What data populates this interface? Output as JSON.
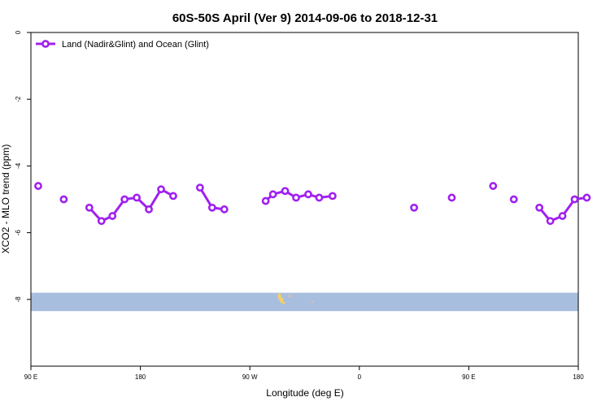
{
  "chart_data": {
    "type": "line",
    "title": "60S-50S April (Ver 9)   2014-09-06 to 2018-12-31",
    "xlabel": "Longitude (deg E)",
    "ylabel": "XCO2 - MLO trend (ppm)",
    "x_tick_labels": [
      "90 E",
      "180",
      "90 W",
      "0",
      "90 E",
      "180"
    ],
    "y_tick_labels": [
      "0",
      "-2",
      "-4",
      "-6",
      "-8"
    ],
    "ylim": [
      -10,
      0
    ],
    "legend_position": "top-left",
    "grid": false,
    "series": [
      {
        "name": "Land (Nadir&Glint) and Ocean (Glint)",
        "color": "#a020f0",
        "segments": [
          [
            [
              96,
              -4.6
            ]
          ],
          [
            [
              117,
              -5.0
            ]
          ],
          [
            [
              138,
              -5.25
            ],
            [
              148,
              -5.65
            ],
            [
              157,
              -5.5
            ],
            [
              167,
              -5.0
            ],
            [
              177,
              -4.95
            ],
            [
              187,
              -5.3
            ],
            [
              197,
              -4.7
            ],
            [
              207,
              -4.9
            ]
          ],
          [
            [
              229,
              -4.65
            ],
            [
              239,
              -5.25
            ],
            [
              249,
              -5.3
            ]
          ],
          [
            [
              283,
              -5.05
            ],
            [
              289,
              -4.85
            ],
            [
              299,
              -4.75
            ],
            [
              308,
              -4.95
            ],
            [
              318,
              -4.85
            ],
            [
              327,
              -4.95
            ],
            [
              338,
              -4.9
            ]
          ],
          [
            [
              405,
              -5.25
            ]
          ],
          [
            [
              436,
              -4.95
            ]
          ],
          [
            [
              470,
              -4.6
            ]
          ],
          [
            [
              487,
              -5.0
            ]
          ],
          [
            [
              508,
              -5.25
            ],
            [
              517,
              -5.65
            ],
            [
              527,
              -5.5
            ],
            [
              537,
              -5.0
            ],
            [
              547,
              -4.95
            ]
          ]
        ]
      }
    ]
  },
  "map_strip": {
    "ocean_color": "#a8bede",
    "land_color": "#f4cf6a"
  }
}
